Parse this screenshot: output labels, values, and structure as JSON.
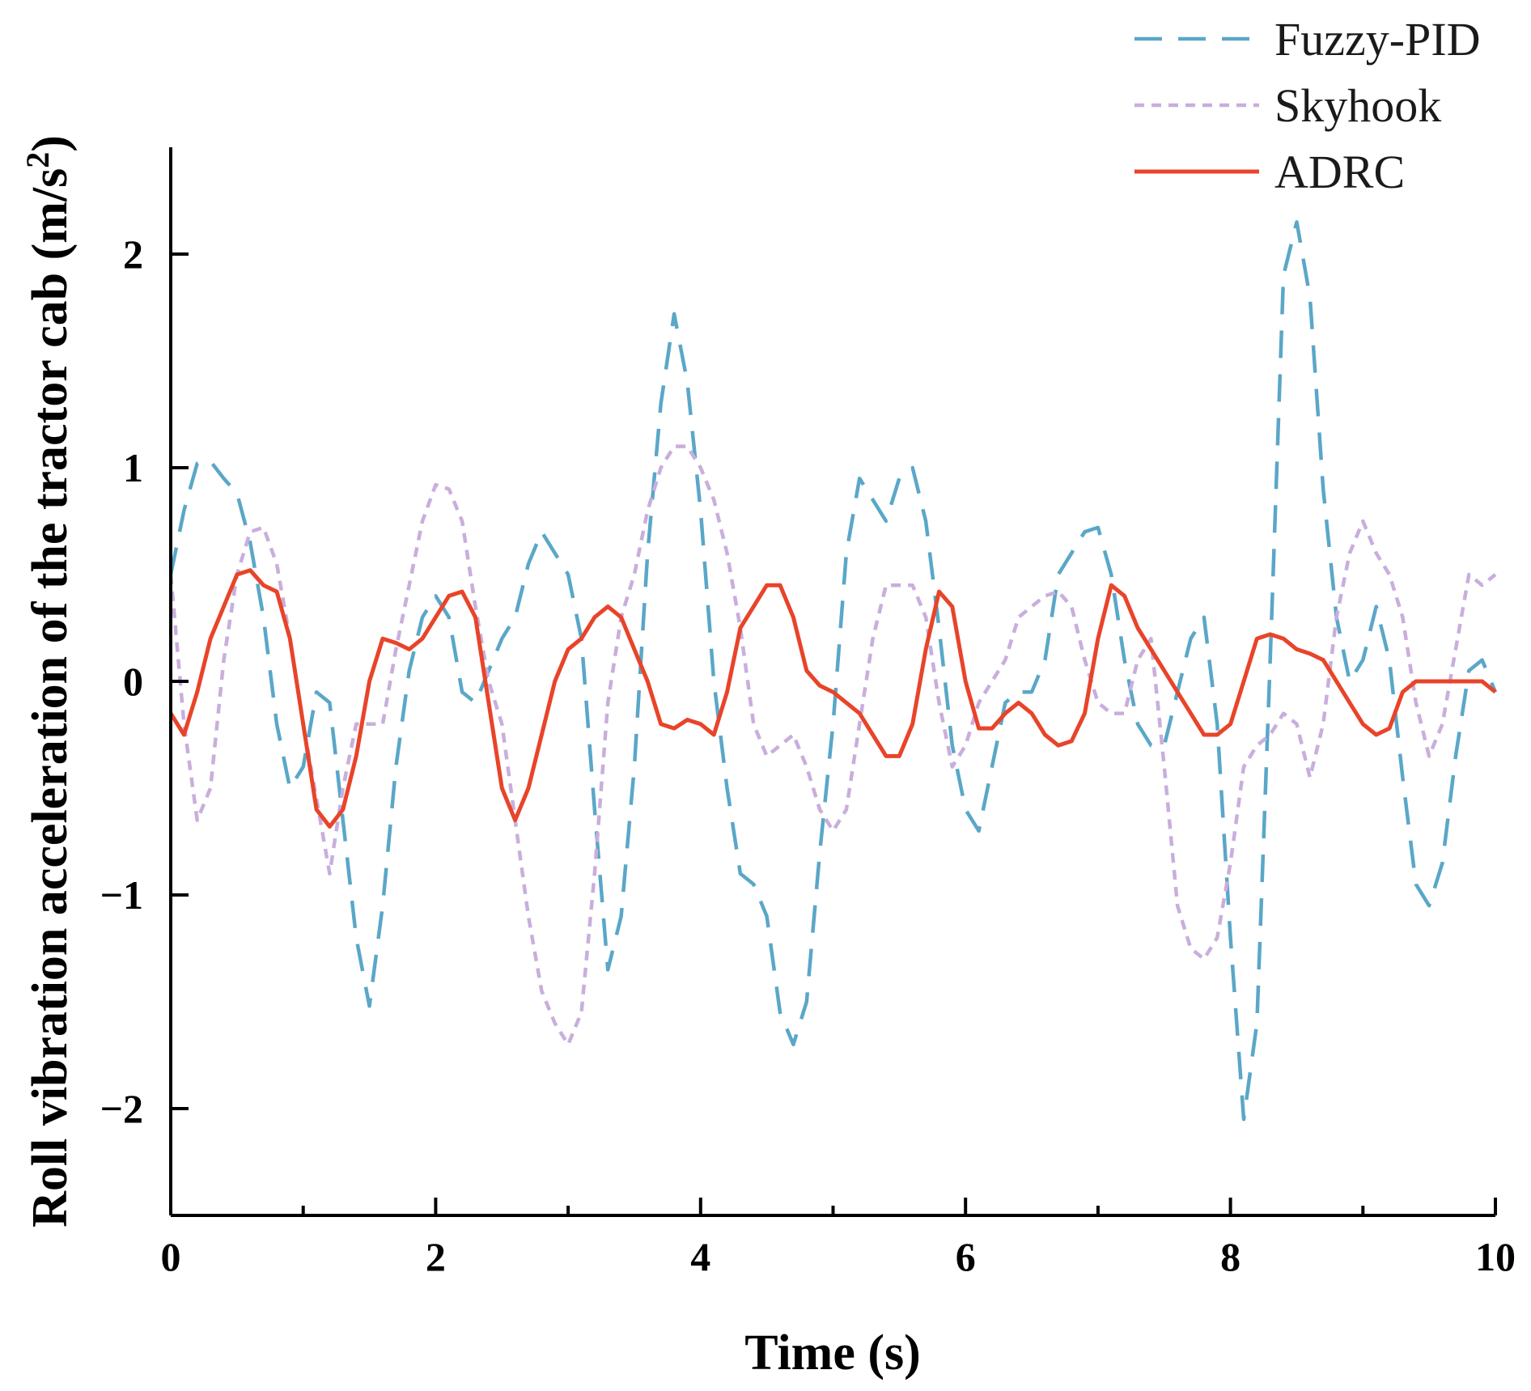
{
  "chart_data": {
    "type": "line",
    "xlabel": "Time (s)",
    "ylabel_main": "Roll vibration acceleration of the tractor cab (m/s",
    "ylabel_sup": "2",
    "ylabel_close": ")",
    "xlim": [
      0,
      10
    ],
    "ylim": [
      -2.5,
      2.5
    ],
    "xticks": [
      0,
      2,
      4,
      6,
      8,
      10
    ],
    "xticks_minor": [
      1,
      3,
      5,
      7,
      9
    ],
    "yticks": [
      -2,
      -1,
      0,
      1,
      2
    ],
    "ytick_labels": [
      "−2",
      "−1",
      "0",
      "1",
      "2"
    ],
    "xtick_labels": [
      "0",
      "2",
      "4",
      "6",
      "8",
      "10"
    ],
    "grid": false,
    "legend_position": "top-right",
    "series": [
      {
        "name": "Fuzzy-PID",
        "color": "#5AA7C8",
        "style": "dashed",
        "x": [
          0,
          0.1,
          0.2,
          0.3,
          0.4,
          0.5,
          0.6,
          0.7,
          0.8,
          0.9,
          1.0,
          1.1,
          1.2,
          1.3,
          1.4,
          1.5,
          1.6,
          1.7,
          1.8,
          1.9,
          2.0,
          2.1,
          2.2,
          2.3,
          2.4,
          2.5,
          2.6,
          2.7,
          2.8,
          2.9,
          3.0,
          3.1,
          3.2,
          3.3,
          3.4,
          3.5,
          3.6,
          3.7,
          3.8,
          3.9,
          4.0,
          4.1,
          4.2,
          4.3,
          4.4,
          4.5,
          4.6,
          4.7,
          4.8,
          4.9,
          5.0,
          5.1,
          5.2,
          5.3,
          5.4,
          5.5,
          5.6,
          5.7,
          5.8,
          5.9,
          6.0,
          6.1,
          6.2,
          6.3,
          6.4,
          6.5,
          6.6,
          6.7,
          6.8,
          6.9,
          7.0,
          7.1,
          7.2,
          7.3,
          7.4,
          7.5,
          7.6,
          7.7,
          7.8,
          7.9,
          8.0,
          8.1,
          8.2,
          8.3,
          8.4,
          8.5,
          8.6,
          8.7,
          8.8,
          8.9,
          9.0,
          9.1,
          9.2,
          9.3,
          9.4,
          9.5,
          9.6,
          9.7,
          9.8,
          9.9,
          10.0
        ],
        "y": [
          0.5,
          0.8,
          1.02,
          1.03,
          0.95,
          0.88,
          0.65,
          0.3,
          -0.2,
          -0.5,
          -0.4,
          -0.05,
          -0.1,
          -0.65,
          -1.2,
          -1.52,
          -1.05,
          -0.4,
          0.05,
          0.3,
          0.4,
          0.3,
          -0.05,
          -0.1,
          0.05,
          0.2,
          0.3,
          0.55,
          0.7,
          0.6,
          0.5,
          0.2,
          -0.6,
          -1.35,
          -1.1,
          -0.4,
          0.6,
          1.3,
          1.72,
          1.4,
          0.8,
          0.0,
          -0.5,
          -0.9,
          -0.95,
          -1.1,
          -1.55,
          -1.7,
          -1.5,
          -0.8,
          -0.2,
          0.6,
          0.95,
          0.85,
          0.75,
          0.95,
          1.0,
          0.75,
          0.25,
          -0.3,
          -0.6,
          -0.7,
          -0.4,
          -0.1,
          -0.05,
          -0.05,
          0.1,
          0.5,
          0.6,
          0.7,
          0.72,
          0.5,
          0.1,
          -0.2,
          -0.3,
          -0.3,
          -0.05,
          0.2,
          0.3,
          -0.2,
          -1.2,
          -2.05,
          -1.6,
          0.1,
          1.9,
          2.15,
          1.8,
          0.9,
          0.3,
          0.0,
          0.1,
          0.35,
          0.1,
          -0.45,
          -0.95,
          -1.05,
          -0.85,
          -0.35,
          0.05,
          0.1,
          -0.05
        ]
      },
      {
        "name": "Skyhook",
        "color": "#C9AEDD",
        "style": "dotted",
        "x": [
          0,
          0.1,
          0.2,
          0.3,
          0.4,
          0.5,
          0.6,
          0.7,
          0.8,
          0.9,
          1.0,
          1.1,
          1.2,
          1.3,
          1.4,
          1.5,
          1.6,
          1.7,
          1.8,
          1.9,
          2.0,
          2.1,
          2.2,
          2.3,
          2.4,
          2.5,
          2.6,
          2.7,
          2.8,
          2.9,
          3.0,
          3.1,
          3.2,
          3.3,
          3.4,
          3.5,
          3.6,
          3.7,
          3.8,
          3.9,
          4.0,
          4.1,
          4.2,
          4.3,
          4.4,
          4.5,
          4.6,
          4.7,
          4.8,
          4.9,
          5.0,
          5.1,
          5.2,
          5.3,
          5.4,
          5.5,
          5.6,
          5.7,
          5.8,
          5.9,
          6.0,
          6.1,
          6.2,
          6.3,
          6.4,
          6.5,
          6.6,
          6.7,
          6.8,
          6.9,
          7.0,
          7.1,
          7.2,
          7.3,
          7.4,
          7.5,
          7.6,
          7.7,
          7.8,
          7.9,
          8.0,
          8.1,
          8.2,
          8.3,
          8.4,
          8.5,
          8.6,
          8.7,
          8.8,
          8.9,
          9.0,
          9.1,
          9.2,
          9.3,
          9.4,
          9.5,
          9.6,
          9.7,
          9.8,
          9.9,
          10.0
        ],
        "y": [
          0.5,
          -0.2,
          -0.65,
          -0.5,
          0.1,
          0.5,
          0.7,
          0.72,
          0.55,
          0.2,
          -0.2,
          -0.55,
          -0.9,
          -0.5,
          -0.2,
          -0.2,
          -0.2,
          0.15,
          0.45,
          0.75,
          0.92,
          0.9,
          0.75,
          0.35,
          0.0,
          -0.2,
          -0.65,
          -1.1,
          -1.45,
          -1.6,
          -1.7,
          -1.55,
          -0.9,
          -0.1,
          0.3,
          0.5,
          0.8,
          1.0,
          1.1,
          1.1,
          1.0,
          0.85,
          0.6,
          0.25,
          -0.2,
          -0.35,
          -0.3,
          -0.25,
          -0.4,
          -0.6,
          -0.7,
          -0.6,
          -0.2,
          0.2,
          0.45,
          0.45,
          0.45,
          0.3,
          -0.1,
          -0.4,
          -0.3,
          -0.1,
          0.0,
          0.1,
          0.3,
          0.35,
          0.4,
          0.42,
          0.35,
          0.1,
          -0.1,
          -0.15,
          -0.15,
          0.1,
          0.2,
          -0.4,
          -1.05,
          -1.25,
          -1.3,
          -1.2,
          -0.85,
          -0.4,
          -0.3,
          -0.25,
          -0.15,
          -0.2,
          -0.45,
          -0.2,
          0.3,
          0.6,
          0.75,
          0.6,
          0.5,
          0.3,
          -0.1,
          -0.35,
          -0.2,
          0.15,
          0.5,
          0.45,
          0.5
        ]
      },
      {
        "name": "ADRC",
        "color": "#E8442A",
        "style": "solid",
        "x": [
          0,
          0.1,
          0.2,
          0.3,
          0.4,
          0.5,
          0.6,
          0.7,
          0.8,
          0.9,
          1.0,
          1.1,
          1.2,
          1.3,
          1.4,
          1.5,
          1.6,
          1.7,
          1.8,
          1.9,
          2.0,
          2.1,
          2.2,
          2.3,
          2.4,
          2.5,
          2.6,
          2.7,
          2.8,
          2.9,
          3.0,
          3.1,
          3.2,
          3.3,
          3.4,
          3.5,
          3.6,
          3.7,
          3.8,
          3.9,
          4.0,
          4.1,
          4.2,
          4.3,
          4.4,
          4.5,
          4.6,
          4.7,
          4.8,
          4.9,
          5.0,
          5.1,
          5.2,
          5.3,
          5.4,
          5.5,
          5.6,
          5.7,
          5.8,
          5.9,
          6.0,
          6.1,
          6.2,
          6.3,
          6.4,
          6.5,
          6.6,
          6.7,
          6.8,
          6.9,
          7.0,
          7.1,
          7.2,
          7.3,
          7.4,
          7.5,
          7.6,
          7.7,
          7.8,
          7.9,
          8.0,
          8.1,
          8.2,
          8.3,
          8.4,
          8.5,
          8.6,
          8.7,
          8.8,
          8.9,
          9.0,
          9.1,
          9.2,
          9.3,
          9.4,
          9.5,
          9.6,
          9.7,
          9.8,
          9.9,
          10.0
        ],
        "y": [
          -0.15,
          -0.25,
          -0.05,
          0.2,
          0.35,
          0.5,
          0.52,
          0.45,
          0.42,
          0.2,
          -0.2,
          -0.6,
          -0.68,
          -0.6,
          -0.35,
          0.0,
          0.2,
          0.18,
          0.15,
          0.2,
          0.3,
          0.4,
          0.42,
          0.3,
          -0.1,
          -0.5,
          -0.65,
          -0.5,
          -0.25,
          0.0,
          0.15,
          0.2,
          0.3,
          0.35,
          0.3,
          0.15,
          0.0,
          -0.2,
          -0.22,
          -0.18,
          -0.2,
          -0.25,
          -0.05,
          0.25,
          0.35,
          0.45,
          0.45,
          0.3,
          0.05,
          -0.02,
          -0.05,
          -0.1,
          -0.15,
          -0.25,
          -0.35,
          -0.35,
          -0.2,
          0.15,
          0.42,
          0.35,
          0.0,
          -0.22,
          -0.22,
          -0.15,
          -0.1,
          -0.15,
          -0.25,
          -0.3,
          -0.28,
          -0.15,
          0.2,
          0.45,
          0.4,
          0.25,
          0.15,
          0.05,
          -0.05,
          -0.15,
          -0.25,
          -0.25,
          -0.2,
          0.0,
          0.2,
          0.22,
          0.2,
          0.15,
          0.13,
          0.1,
          0.0,
          -0.1,
          -0.2,
          -0.25,
          -0.22,
          -0.05,
          0.0,
          0.0,
          0.0,
          0.0,
          0.0,
          0.0,
          -0.05
        ]
      }
    ]
  }
}
